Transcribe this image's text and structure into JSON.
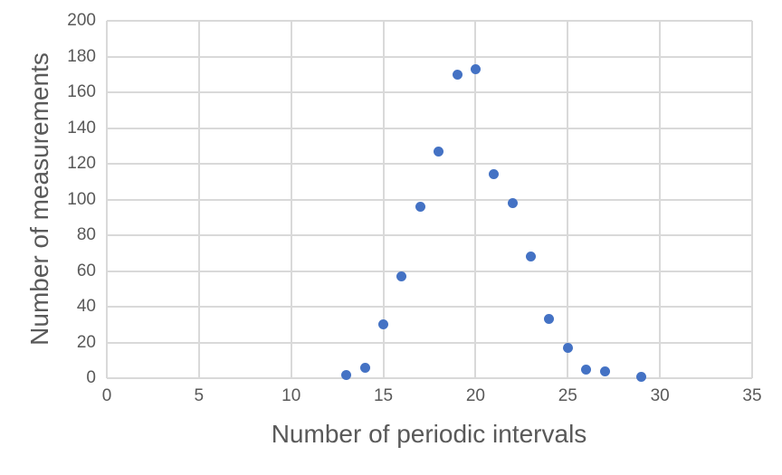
{
  "chart_data": {
    "type": "scatter",
    "title": "",
    "xlabel": "Number of periodic intervals",
    "ylabel": "Number of measurements",
    "xlim": [
      0,
      35
    ],
    "ylim": [
      0,
      200
    ],
    "x_ticks": [
      0,
      5,
      10,
      15,
      20,
      25,
      30,
      35
    ],
    "y_ticks": [
      0,
      20,
      40,
      60,
      80,
      100,
      120,
      140,
      160,
      180,
      200
    ],
    "grid": true,
    "legend": "none",
    "points": [
      [
        13,
        2
      ],
      [
        14,
        6
      ],
      [
        15,
        30
      ],
      [
        16,
        57
      ],
      [
        17,
        96
      ],
      [
        18,
        127
      ],
      [
        19,
        170
      ],
      [
        20,
        173
      ],
      [
        21,
        114
      ],
      [
        22,
        98
      ],
      [
        23,
        68
      ],
      [
        24,
        33
      ],
      [
        25,
        17
      ],
      [
        26,
        5
      ],
      [
        27,
        4
      ],
      [
        29,
        1
      ]
    ]
  },
  "styles": {
    "marker_color": "#4472C4",
    "grid_color": "#D9D9D9",
    "text_color": "#595959",
    "background": "#FFFFFF"
  }
}
